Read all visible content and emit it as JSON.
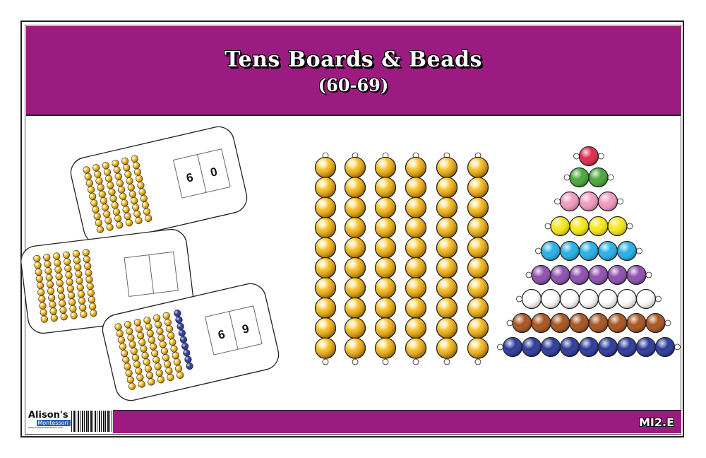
{
  "header": {
    "title": "Tens Boards & Beads",
    "subtitle": "(60-69)"
  },
  "cards": [
    {
      "digits": [
        "6",
        "0"
      ],
      "gold_bars": 6,
      "unit_beads": 0
    },
    {
      "digits": [
        "",
        ""
      ],
      "gold_bars": 6,
      "unit_beads": 0
    },
    {
      "digits": [
        "6",
        "9"
      ],
      "gold_bars": 6,
      "unit_beads": 9
    }
  ],
  "ten_bars": {
    "count": 6,
    "beads_per_bar": 10,
    "color": "#f5b820"
  },
  "bead_stair": {
    "colors": [
      "#e0294a",
      "#4aa83a",
      "#f49ac0",
      "#f8e81a",
      "#27b0e8",
      "#8e4fb0",
      "#ffffff",
      "#a8541e",
      "#2b3a9a"
    ]
  },
  "colors": {
    "brand": "#9c1b80",
    "unit_bead": "#2b3a9a"
  },
  "footer": {
    "code": "MI2.E",
    "logo_line1": "Alison's",
    "logo_line2": "Montessori",
    "logo_url": "www.alisonsmontessori.com"
  }
}
